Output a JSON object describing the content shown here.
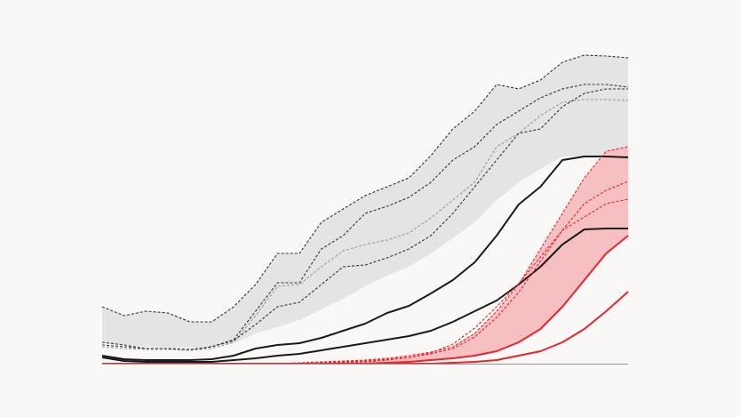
{
  "chart_data": {
    "type": "line",
    "x": [
      0,
      1,
      2,
      3,
      4,
      5,
      6,
      7,
      8,
      9,
      10,
      11,
      12,
      13,
      14,
      15,
      16,
      17,
      18,
      19,
      20,
      21,
      22,
      23,
      24
    ],
    "xlim": [
      0,
      24
    ],
    "ylim": [
      0,
      360
    ],
    "bands": [
      {
        "color": "#e4e4e4",
        "upper": [
          64,
          54,
          59,
          57,
          47,
          47,
          64,
          89,
          124,
          124,
          159,
          174,
          189,
          199,
          209,
          234,
          264,
          284,
          314,
          309,
          319,
          339,
          347,
          346,
          344
        ],
        "lower": [
          23,
          21,
          19,
          18,
          18,
          19,
          23,
          34,
          41,
          49,
          61,
          73,
          87,
          99,
          109,
          124,
          141,
          159,
          184,
          204,
          219,
          233,
          233,
          233,
          233
        ]
      },
      {
        "color": "#f6c0c3",
        "upper": [
          0,
          0,
          0,
          0,
          0,
          0,
          0,
          0,
          0,
          1,
          2,
          3,
          4,
          6,
          9,
          13,
          19,
          34,
          59,
          89,
          129,
          169,
          209,
          239,
          244
        ],
        "lower": [
          0,
          0,
          0,
          0,
          0,
          0,
          0,
          0,
          0,
          0,
          0,
          0,
          0,
          1,
          2,
          4,
          6,
          9,
          14,
          24,
          39,
          64,
          94,
          124,
          144
        ]
      }
    ],
    "series": [
      {
        "color": "#333333",
        "dash": true,
        "values": [
          64,
          54,
          59,
          57,
          47,
          47,
          64,
          89,
          124,
          124,
          159,
          174,
          189,
          199,
          209,
          234,
          264,
          284,
          314,
          309,
          319,
          339,
          347,
          346,
          344
        ]
      },
      {
        "color": "#333333",
        "dash": true,
        "values": [
          24,
          21,
          17,
          17,
          15,
          19,
          27,
          59,
          91,
          91,
          129,
          144,
          169,
          177,
          187,
          204,
          229,
          244,
          269,
          284,
          299,
          309,
          314,
          314,
          311
        ]
      },
      {
        "color": "#999999",
        "dash": true,
        "values": [
          19,
          17,
          16,
          16,
          15,
          17,
          24,
          54,
          87,
          89,
          109,
          127,
          134,
          139,
          147,
          164,
          184,
          204,
          244,
          259,
          279,
          294,
          297,
          297,
          296
        ]
      },
      {
        "color": "#333333",
        "dash": true,
        "values": [
          21,
          19,
          17,
          17,
          16,
          19,
          26,
          44,
          64,
          69,
          89,
          109,
          111,
          119,
          129,
          144,
          169,
          199,
          229,
          259,
          264,
          289,
          304,
          309,
          309
        ]
      },
      {
        "color": "#1a1a1a",
        "dash": false,
        "values": [
          9,
          5,
          4,
          4,
          4,
          5,
          9,
          17,
          21,
          23,
          29,
          37,
          45,
          57,
          65,
          79,
          94,
          114,
          144,
          179,
          199,
          229,
          233,
          233,
          232
        ]
      },
      {
        "color": "#1a1a1a",
        "dash": false,
        "values": [
          7,
          3,
          2,
          2,
          2,
          2,
          4,
          6,
          9,
          11,
          15,
          19,
          23,
          27,
          31,
          37,
          47,
          59,
          71,
          89,
          109,
          134,
          151,
          152,
          152
        ]
      },
      {
        "color": "#e8242c",
        "dash": true,
        "values": [
          0,
          0,
          0,
          0,
          0,
          0,
          0,
          0,
          0,
          0,
          1,
          2,
          3,
          5,
          7,
          11,
          17,
          30,
          52,
          80,
          115,
          150,
          180,
          195,
          205
        ]
      },
      {
        "color": "#e8242c",
        "dash": true,
        "values": [
          0,
          0,
          0,
          0,
          0,
          0,
          0,
          0,
          0,
          0,
          0,
          1,
          2,
          4,
          7,
          12,
          22,
          40,
          64,
          90,
          120,
          150,
          165,
          180,
          185
        ]
      },
      {
        "color": "#e8242c",
        "dash": true,
        "values": [
          0,
          0,
          0,
          0,
          0,
          0,
          0,
          0,
          0,
          1,
          2,
          3,
          4,
          6,
          9,
          13,
          19,
          34,
          59,
          89,
          129,
          169,
          209,
          239,
          244
        ]
      },
      {
        "color": "#e8242c",
        "dash": false,
        "values": [
          0,
          0,
          0,
          0,
          0,
          0,
          0,
          0,
          0,
          0,
          0,
          0,
          0,
          1,
          2,
          4,
          6,
          9,
          14,
          24,
          39,
          64,
          94,
          124,
          144
        ]
      },
      {
        "color": "#e8242c",
        "dash": false,
        "values": [
          0,
          0,
          0,
          0,
          0,
          0,
          0,
          0,
          0,
          0,
          0,
          0,
          0,
          0,
          0,
          0,
          1,
          2,
          4,
          9,
          14,
          24,
          39,
          59,
          81
        ]
      }
    ]
  }
}
